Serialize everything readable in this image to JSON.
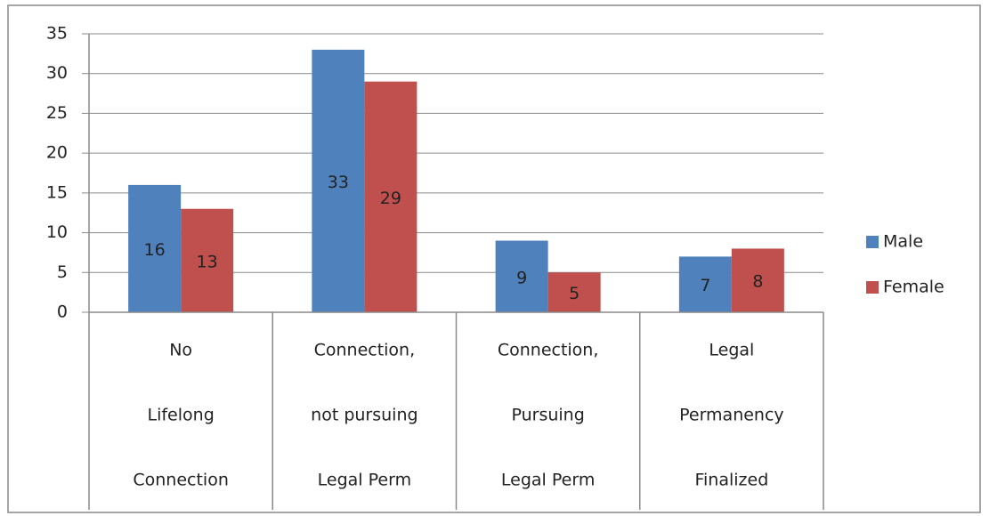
{
  "chart_data": {
    "type": "bar",
    "categories": [
      [
        "No",
        "Lifelong",
        "Connection"
      ],
      [
        "Connection,",
        "not pursuing",
        "Legal Perm"
      ],
      [
        "Connection,",
        "Pursuing",
        "Legal Perm"
      ],
      [
        "Legal",
        "Permanency",
        "Finalized"
      ]
    ],
    "series": [
      {
        "name": "Male",
        "color": "#4f81bd",
        "values": [
          16,
          33,
          9,
          7
        ]
      },
      {
        "name": "Female",
        "color": "#c0504d",
        "values": [
          13,
          29,
          5,
          8
        ]
      }
    ],
    "ylim": [
      0,
      35
    ],
    "yticks": [
      0,
      5,
      10,
      15,
      20,
      25,
      30,
      35
    ],
    "grid": true,
    "legend": "right",
    "data_labels": true
  }
}
